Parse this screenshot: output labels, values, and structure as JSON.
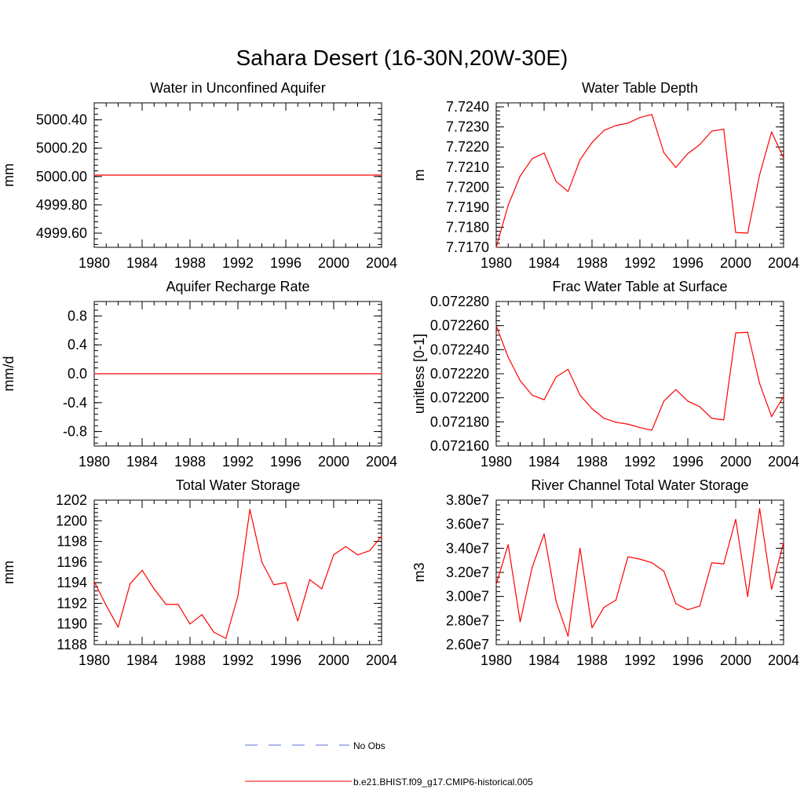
{
  "figure": {
    "title": "Sahara Desert (16-30N,20W-30E)",
    "legend": [
      {
        "label": "No Obs",
        "color": "#5b6fd6",
        "dash": true
      },
      {
        "label": "b.e21.BHIST.f09_g17.CMIP6-historical.005",
        "color": "#ff0000",
        "dash": false
      }
    ]
  },
  "chart_data": [
    {
      "type": "line",
      "title": "Water in Unconfined Aquifer",
      "ylabel": "mm",
      "xlabel": "",
      "xlim": [
        1980,
        2004
      ],
      "ylim": [
        4999.5,
        5000.52
      ],
      "xticks": [
        "1980",
        "1984",
        "1988",
        "1992",
        "1996",
        "2000",
        "2004"
      ],
      "yticks": [
        {
          "v": 4999.6,
          "label": "4999.60"
        },
        {
          "v": 4999.8,
          "label": "4999.80"
        },
        {
          "v": 5000.0,
          "label": "5000.00"
        },
        {
          "v": 5000.2,
          "label": "5000.20"
        },
        {
          "v": 5000.4,
          "label": "5000.40"
        }
      ],
      "yminor_step": 0.04,
      "color": "#ff0000",
      "series": [
        {
          "x": [
            1980,
            2004
          ],
          "values": [
            5000.01,
            5000.01
          ]
        }
      ]
    },
    {
      "type": "line",
      "title": "Water Table Depth",
      "ylabel": "m",
      "xlabel": "",
      "xlim": [
        1980,
        2004
      ],
      "ylim": [
        7.717,
        7.7242
      ],
      "xticks": [
        "1980",
        "1984",
        "1988",
        "1992",
        "1996",
        "2000",
        "2004"
      ],
      "yticks": [
        {
          "v": 7.717,
          "label": "7.7170"
        },
        {
          "v": 7.718,
          "label": "7.7180"
        },
        {
          "v": 7.719,
          "label": "7.7190"
        },
        {
          "v": 7.72,
          "label": "7.7200"
        },
        {
          "v": 7.721,
          "label": "7.7210"
        },
        {
          "v": 7.722,
          "label": "7.7220"
        },
        {
          "v": 7.723,
          "label": "7.7230"
        },
        {
          "v": 7.724,
          "label": "7.7240"
        }
      ],
      "yminor_step": 0.0002,
      "color": "#ff0000",
      "series": [
        {
          "x": [
            1980,
            1981,
            1982,
            1983,
            1984,
            1985,
            1986,
            1987,
            1988,
            1989,
            1990,
            1991,
            1992,
            1993,
            1994,
            1995,
            1996,
            1997,
            1998,
            1999,
            2000,
            2001,
            2002,
            2003,
            2004
          ],
          "values": [
            7.717,
            7.7191,
            7.72055,
            7.72142,
            7.7217,
            7.72028,
            7.71978,
            7.72136,
            7.72222,
            7.72283,
            7.72307,
            7.72319,
            7.72347,
            7.72362,
            7.72172,
            7.72098,
            7.72167,
            7.72212,
            7.72279,
            7.72289,
            7.71774,
            7.71771,
            7.72062,
            7.72275,
            7.72145
          ]
        }
      ]
    },
    {
      "type": "line",
      "title": "Aquifer Recharge Rate",
      "ylabel": "mm/d",
      "xlabel": "",
      "xlim": [
        1980,
        2004
      ],
      "ylim": [
        -1.0,
        1.0
      ],
      "xticks": [
        "1980",
        "1984",
        "1988",
        "1992",
        "1996",
        "2000",
        "2004"
      ],
      "yticks": [
        {
          "v": -0.8,
          "label": "-0.8"
        },
        {
          "v": -0.4,
          "label": "-0.4"
        },
        {
          "v": 0.0,
          "label": "0.0"
        },
        {
          "v": 0.4,
          "label": "0.4"
        },
        {
          "v": 0.8,
          "label": "0.8"
        }
      ],
      "yminor_step": 0.08,
      "color": "#ff0000",
      "series": [
        {
          "x": [
            1980,
            2004
          ],
          "values": [
            0.0,
            0.0
          ]
        }
      ]
    },
    {
      "type": "line",
      "title": "Frac Water Table at Surface",
      "ylabel": "unitless [0-1]",
      "xlabel": "",
      "xlim": [
        1980,
        2004
      ],
      "ylim": [
        0.07216,
        0.07228
      ],
      "xticks": [
        "1980",
        "1984",
        "1988",
        "1992",
        "1996",
        "2000",
        "2004"
      ],
      "yticks": [
        {
          "v": 0.07216,
          "label": "0.072160"
        },
        {
          "v": 0.07218,
          "label": "0.072180"
        },
        {
          "v": 0.0722,
          "label": "0.072200"
        },
        {
          "v": 0.07222,
          "label": "0.072220"
        },
        {
          "v": 0.07224,
          "label": "0.072240"
        },
        {
          "v": 0.07226,
          "label": "0.072260"
        },
        {
          "v": 0.07228,
          "label": "0.072280"
        }
      ],
      "yminor_step": 4e-06,
      "color": "#ff0000",
      "series": [
        {
          "x": [
            1980,
            1981,
            1982,
            1983,
            1984,
            1985,
            1986,
            1987,
            1988,
            1989,
            1990,
            1991,
            1992,
            1993,
            1994,
            1995,
            1996,
            1997,
            1998,
            1999,
            2000,
            2001,
            2002,
            2003,
            2004
          ],
          "values": [
            0.0722598,
            0.0722337,
            0.0722143,
            0.0722022,
            0.0721984,
            0.0722173,
            0.0722237,
            0.0722022,
            0.072191,
            0.072183,
            0.0721797,
            0.0721781,
            0.0721753,
            0.0721731,
            0.0721973,
            0.0722068,
            0.0721973,
            0.0721926,
            0.072183,
            0.0721817,
            0.0722539,
            0.0722544,
            0.0722118,
            0.0721844,
            0.0722012
          ]
        }
      ]
    },
    {
      "type": "line",
      "title": "Total Water Storage",
      "ylabel": "mm",
      "xlabel": "",
      "xlim": [
        1980,
        2004
      ],
      "ylim": [
        1188,
        1202
      ],
      "xticks": [
        "1980",
        "1984",
        "1988",
        "1992",
        "1996",
        "2000",
        "2004"
      ],
      "yticks": [
        {
          "v": 1188,
          "label": "1188"
        },
        {
          "v": 1190,
          "label": "1190"
        },
        {
          "v": 1192,
          "label": "1192"
        },
        {
          "v": 1194,
          "label": "1194"
        },
        {
          "v": 1196,
          "label": "1196"
        },
        {
          "v": 1198,
          "label": "1198"
        },
        {
          "v": 1200,
          "label": "1200"
        },
        {
          "v": 1202,
          "label": "1202"
        }
      ],
      "yminor_step": 0.4,
      "color": "#ff0000",
      "series": [
        {
          "x": [
            1980,
            1981,
            1982,
            1983,
            1984,
            1985,
            1986,
            1987,
            1988,
            1989,
            1990,
            1991,
            1992,
            1993,
            1994,
            1995,
            1996,
            1997,
            1998,
            1999,
            2000,
            2001,
            2002,
            2003,
            2004
          ],
          "values": [
            1194.1,
            1191.8,
            1189.7,
            1193.9,
            1195.2,
            1193.4,
            1191.9,
            1191.9,
            1190.0,
            1190.9,
            1189.2,
            1188.6,
            1192.7,
            1201.1,
            1196.0,
            1193.8,
            1194.0,
            1190.3,
            1194.3,
            1193.4,
            1196.7,
            1197.5,
            1196.7,
            1197.1,
            1198.5
          ]
        }
      ]
    },
    {
      "type": "line",
      "title": "River Channel Total Water Storage",
      "ylabel": "m3",
      "xlabel": "",
      "xlim": [
        1980,
        2004
      ],
      "ylim": [
        26000000,
        38000000
      ],
      "xticks": [
        "1980",
        "1984",
        "1988",
        "1992",
        "1996",
        "2000",
        "2004"
      ],
      "yticks": [
        {
          "v": 26000000,
          "label": "2.60e7"
        },
        {
          "v": 28000000,
          "label": "2.80e7"
        },
        {
          "v": 30000000,
          "label": "3.00e7"
        },
        {
          "v": 32000000,
          "label": "3.20e7"
        },
        {
          "v": 34000000,
          "label": "3.40e7"
        },
        {
          "v": 36000000,
          "label": "3.60e7"
        },
        {
          "v": 38000000,
          "label": "3.80e7"
        }
      ],
      "yminor_step": 400000,
      "color": "#ff0000",
      "series": [
        {
          "x": [
            1980,
            1981,
            1982,
            1983,
            1984,
            1985,
            1986,
            1987,
            1988,
            1989,
            1990,
            1991,
            1992,
            1993,
            1994,
            1995,
            1996,
            1997,
            1998,
            1999,
            2000,
            2001,
            2002,
            2003,
            2004
          ],
          "values": [
            31000000,
            34300000,
            27900000,
            32400000,
            35200000,
            29600000,
            26700000,
            34000000,
            27400000,
            29100000,
            29700000,
            33300000,
            33100000,
            32800000,
            32100000,
            29400000,
            28900000,
            29200000,
            32800000,
            32700000,
            36400000,
            30000000,
            37300000,
            30600000,
            34500000
          ]
        }
      ]
    }
  ]
}
